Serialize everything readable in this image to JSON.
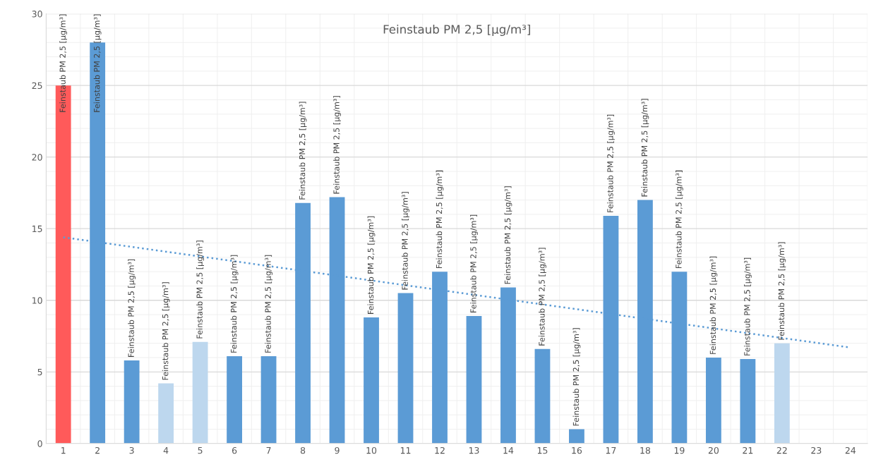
{
  "chart_data": {
    "type": "bar",
    "title": "Feinstaub PM 2,5 [µg/m³]",
    "categories": [
      "1",
      "2",
      "3",
      "4",
      "5",
      "6",
      "7",
      "8",
      "9",
      "10",
      "11",
      "12",
      "13",
      "14",
      "15",
      "16",
      "17",
      "18",
      "19",
      "20",
      "21",
      "22",
      "23",
      "24"
    ],
    "series": [
      {
        "values": [
          25,
          28,
          5.8,
          4.2,
          7.1,
          6.1,
          6.1,
          16.8,
          17.2,
          8.8,
          10.5,
          12.0,
          8.9,
          10.9,
          6.6,
          1.0,
          15.9,
          17.0,
          12.0,
          6.0,
          5.9,
          7.0,
          null,
          null
        ],
        "colors": [
          "#ff5a5a",
          "#5b9bd5",
          "#5b9bd5",
          "#bdd7ee",
          "#bdd7ee",
          "#5b9bd5",
          "#5b9bd5",
          "#5b9bd5",
          "#5b9bd5",
          "#5b9bd5",
          "#5b9bd5",
          "#5b9bd5",
          "#5b9bd5",
          "#5b9bd5",
          "#5b9bd5",
          "#5b9bd5",
          "#5b9bd5",
          "#5b9bd5",
          "#5b9bd5",
          "#5b9bd5",
          "#5b9bd5",
          "#bdd7ee",
          "#5b9bd5",
          "#5b9bd5"
        ],
        "value_labels": [
          "Feinstaub PM 2,5 [µg/m³]",
          "Feinstaub PM 2,5 [µg/m³]",
          "Feinstaub PM 2,5 [µg/m³]",
          "Feinstaub PM 2,5 [µg/m³]",
          "Feinstaub PM 2,5 [µg/m³]",
          "Feinstaub PM 2,5 [µg/m³]",
          "Feinstaub PM 2,5 [µg/m³]",
          "Feinstaub PM 2,5 [µg/m³]",
          "Feinstaub PM 2,5 [µg/m³]",
          "Feinstaub PM 2,5 [µg/m³]",
          "Feinstaub PM 2,5 [µg/m³]",
          "Feinstaub PM 2,5 [µg/m³]",
          "Feinstaub PM 2,5 [µg/m³]",
          "Feinstaub PM 2,5 [µg/m³]",
          "Feinstaub PM 2,5 [µg/m³]",
          "Feinstaub PM 2,5 [µg/m³]",
          "Feinstaub PM 2,5 [µg/m³]",
          "Feinstaub PM 2,5 [µg/m³]",
          "Feinstaub PM 2,5 [µg/m³]",
          "Feinstaub PM 2,5 [µg/m³]",
          "Feinstaub PM 2,5 [µg/m³]",
          "Feinstaub PM 2,5 [µg/m³]",
          null,
          null
        ]
      },
      {
        "type": "line",
        "x": [
          "1",
          "24"
        ],
        "values": [
          14.4,
          6.7
        ],
        "color": "#5b9bd5",
        "line_style": "dotted"
      }
    ],
    "ylim": [
      0,
      30
    ],
    "yticks": [
      0,
      5,
      10,
      15,
      20,
      25,
      30
    ],
    "grid": true
  }
}
